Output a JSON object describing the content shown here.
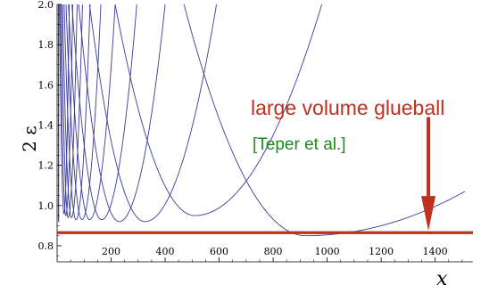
{
  "chart_data": {
    "type": "line",
    "title": "",
    "xlabel": "x",
    "ylabel": "2 ε",
    "xlim": [
      0,
      1540
    ],
    "ylim": [
      0.72,
      2.0
    ],
    "x_ticks": [
      200,
      400,
      600,
      800,
      1000,
      1200,
      1400
    ],
    "x_tick_labels": [
      "200",
      "400",
      "600",
      "800",
      "1000",
      "1200",
      "1400"
    ],
    "y_ticks": [
      0.8,
      1.0,
      1.2,
      1.4,
      1.6,
      1.8,
      2.0
    ],
    "y_tick_labels": [
      "0.8",
      "1.0",
      "1.2",
      "1.4",
      "1.6",
      "1.8",
      "2.0"
    ],
    "grid": false,
    "line_color": "#3a3a99",
    "series": [
      {
        "min_x": 920,
        "min_y": 0.85,
        "left_top_x": 470,
        "right_x_at": [
          1510,
          1.07
        ]
      },
      {
        "min_x": 510,
        "min_y": 0.95,
        "left_top_x": 215,
        "right_top_x": 980
      },
      {
        "min_x": 325,
        "min_y": 0.92,
        "left_top_x": 120,
        "right_top_x": 590
      },
      {
        "min_x": 230,
        "min_y": 0.92,
        "left_top_x": 80,
        "right_top_x": 400
      },
      {
        "min_x": 165,
        "min_y": 0.93,
        "left_top_x": 55,
        "right_top_x": 295
      },
      {
        "min_x": 120,
        "min_y": 0.93,
        "left_top_x": 42,
        "right_top_x": 215
      },
      {
        "min_x": 92,
        "min_y": 0.93,
        "left_top_x": 33,
        "right_top_x": 162
      },
      {
        "min_x": 70,
        "min_y": 0.93,
        "left_top_x": 26,
        "right_top_x": 122
      },
      {
        "min_x": 53,
        "min_y": 0.94,
        "left_top_x": 20,
        "right_top_x": 94
      },
      {
        "min_x": 41,
        "min_y": 0.94,
        "left_top_x": 16,
        "right_top_x": 74
      },
      {
        "min_x": 32,
        "min_y": 0.95,
        "left_top_x": 12,
        "right_top_x": 58
      },
      {
        "min_x": 25,
        "min_y": 0.96,
        "left_top_x": 9,
        "right_top_x": 45
      }
    ],
    "reference_line": {
      "y": 0.865,
      "color": "#c0301f"
    },
    "annotation": {
      "text": "large volume glueball",
      "color": "#c0301f",
      "arrow_x": 1375,
      "arrow_from_y": 1.44,
      "arrow_to_y": 0.87
    },
    "citation": {
      "text": "[Teper et al.]",
      "color": "#1e8a1e"
    }
  }
}
